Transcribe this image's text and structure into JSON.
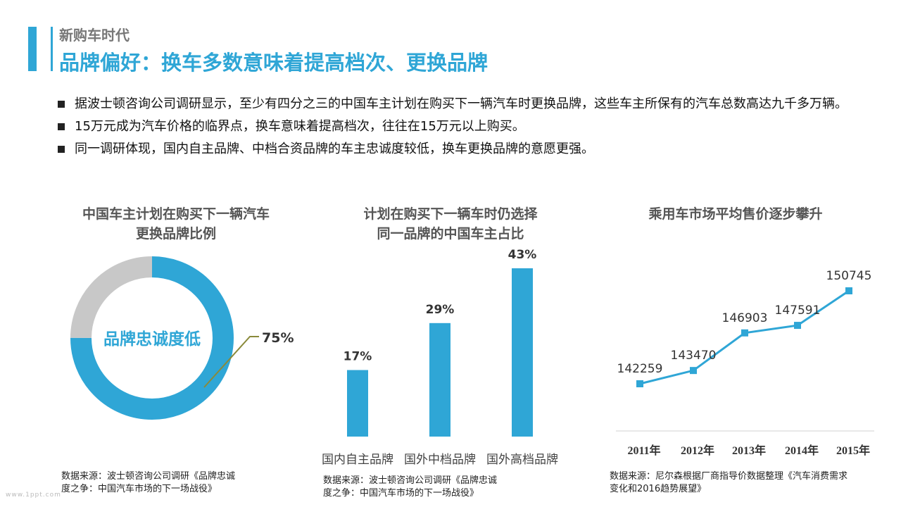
{
  "header": {
    "kicker": "新购车时代",
    "title": "品牌偏好：换车多数意味着提高档次、更换品牌"
  },
  "bullets": [
    "据波士顿咨询公司调研显示，至少有四分之三的中国车主计划在购买下一辆汽车时更换品牌，这些车主所保有的汽车总数高达九千多万辆。",
    "15万元成为汽车价格的临界点，换车意味着提高档次，往往在15万元以上购买。",
    "同一调研体现，国内自主品牌、中档合资品牌的车主忠诚度较低，换车更换品牌的意愿更强。"
  ],
  "footer_logo": "www.1ppt.com",
  "colors": {
    "accent": "#2fa6d6",
    "gray": "#c8c8c8",
    "leader": "#8a8a3a"
  },
  "chart_data": [
    {
      "type": "pie",
      "title_lines": [
        "中国车主计划在购买下一辆汽车",
        "更换品牌比例"
      ],
      "center_label": "品牌忠诚度低",
      "slices": [
        {
          "label": "",
          "value": 75,
          "display": "75%",
          "color": "#2fa6d6"
        },
        {
          "label": "",
          "value": 25,
          "display": "",
          "color": "#c8c8c8"
        }
      ],
      "source_lines": [
        "数据来源：波士顿咨询公司调研《品牌忠诚",
        "度之争：中国汽车市场的下一场战役》"
      ]
    },
    {
      "type": "bar",
      "title_lines": [
        "计划在购买下一辆车时仍选择",
        "同一品牌的中国车主占比"
      ],
      "categories": [
        "国内自主品牌",
        "国外中档品牌",
        "国外高档品牌"
      ],
      "values": [
        17,
        29,
        43
      ],
      "value_labels": [
        "17%",
        "29%",
        "43%"
      ],
      "ylim": [
        0,
        43
      ],
      "source_lines": [
        "数据来源：波士顿咨询公司调研《品牌忠诚",
        "度之争：中国汽车市场的下一场战役》"
      ]
    },
    {
      "type": "line",
      "title_lines": [
        "乘用车市场平均售价逐步攀升"
      ],
      "x": [
        "2011年",
        "2012年",
        "2013年",
        "2014年",
        "2015年"
      ],
      "values": [
        142259,
        143470,
        146903,
        147591,
        150745
      ],
      "value_labels": [
        "142259",
        "143470",
        "146903",
        "147591",
        "150745"
      ],
      "source_lines": [
        "数据来源：尼尔森根据厂商指导价数据整理《汽车消费需求",
        "变化和2016趋势展望》"
      ]
    }
  ]
}
